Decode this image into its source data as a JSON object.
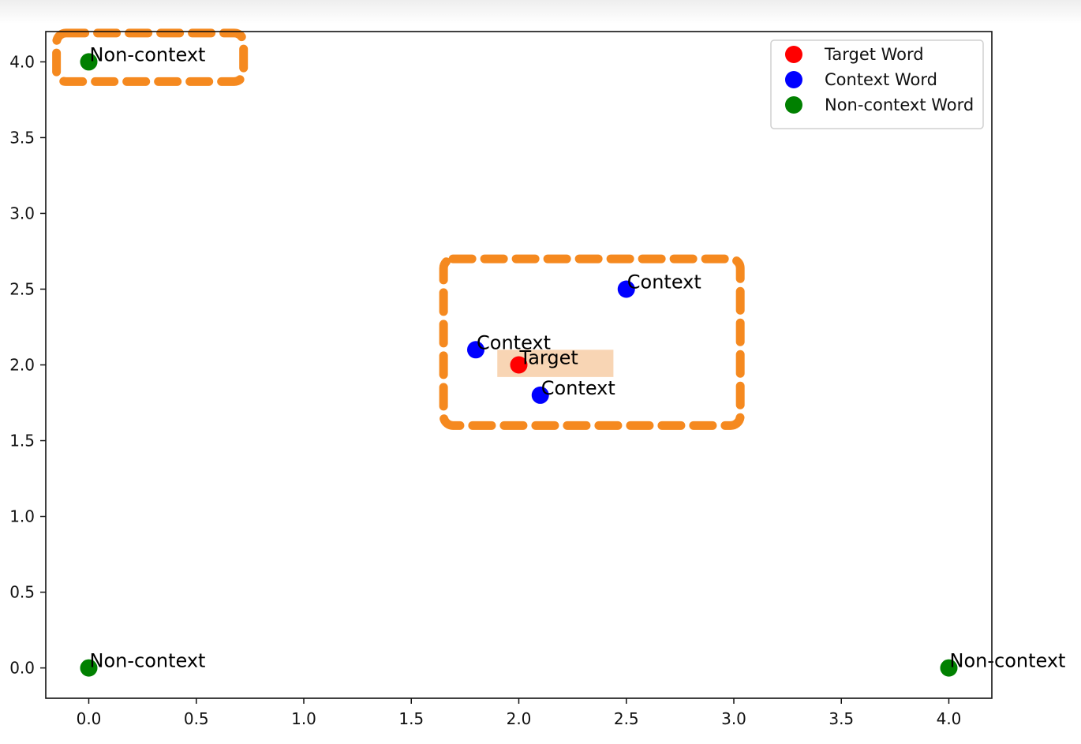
{
  "chart_data": {
    "type": "scatter",
    "title": "",
    "xlabel": "",
    "ylabel": "",
    "xlim": [
      -0.2,
      4.2
    ],
    "ylim": [
      -0.2,
      4.2
    ],
    "xticks": [
      "0.0",
      "0.5",
      "1.0",
      "1.5",
      "2.0",
      "2.5",
      "3.0",
      "3.5",
      "4.0"
    ],
    "yticks": [
      "0.0",
      "0.5",
      "1.0",
      "1.5",
      "2.0",
      "2.5",
      "3.0",
      "3.5",
      "4.0"
    ],
    "grid": false,
    "legend_position": "top-right",
    "series": [
      {
        "name": "Target Word",
        "color": "#ff0000",
        "points": [
          {
            "x": 2.0,
            "y": 2.0,
            "label": "Target"
          }
        ]
      },
      {
        "name": "Context Word",
        "color": "#0000ff",
        "points": [
          {
            "x": 1.8,
            "y": 2.1,
            "label": "Context"
          },
          {
            "x": 2.1,
            "y": 1.8,
            "label": "Context"
          },
          {
            "x": 2.5,
            "y": 2.5,
            "label": "Context"
          }
        ]
      },
      {
        "name": "Non-context Word",
        "color": "#008000",
        "points": [
          {
            "x": 0.0,
            "y": 4.0,
            "label": "Non-context"
          },
          {
            "x": 0.0,
            "y": 0.0,
            "label": "Non-context"
          },
          {
            "x": 4.0,
            "y": 0.0,
            "label": "Non-context"
          }
        ]
      }
    ],
    "annotations": [
      {
        "type": "dashed-box",
        "color": "#f5891f",
        "x": [
          -0.15,
          0.72
        ],
        "y": [
          3.87,
          4.19
        ]
      },
      {
        "type": "dashed-box",
        "color": "#f5891f",
        "x": [
          1.65,
          3.03
        ],
        "y": [
          1.6,
          2.7
        ]
      },
      {
        "type": "highlight",
        "color": "#f8d5b4",
        "x": [
          1.9,
          2.44
        ],
        "y": [
          1.92,
          2.1
        ]
      }
    ]
  }
}
